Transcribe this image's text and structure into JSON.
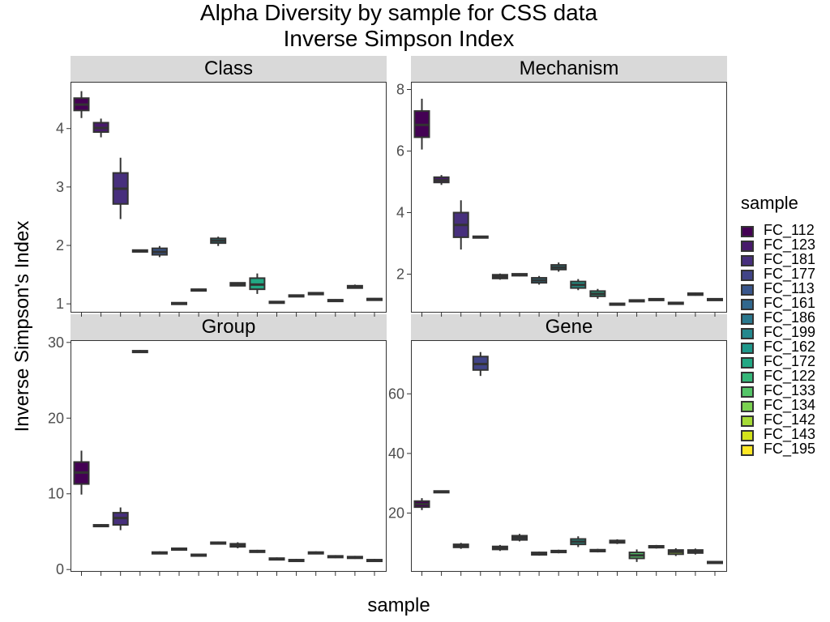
{
  "title_line1": "Alpha Diversity by sample for CSS data",
  "title_line2": "Inverse Simpson Index",
  "ylabel": "Inverse Simpson's Index",
  "xlabel": "sample",
  "legend": {
    "title": "sample",
    "items": [
      {
        "label": "FC_112",
        "color": "#440154"
      },
      {
        "label": "FC_123",
        "color": "#481a6c"
      },
      {
        "label": "FC_181",
        "color": "#472f7d"
      },
      {
        "label": "FC_177",
        "color": "#414487"
      },
      {
        "label": "FC_113",
        "color": "#39568c"
      },
      {
        "label": "FC_161",
        "color": "#31688e"
      },
      {
        "label": "FC_186",
        "color": "#2a788e"
      },
      {
        "label": "FC_199",
        "color": "#23888e"
      },
      {
        "label": "FC_162",
        "color": "#1f988b"
      },
      {
        "label": "FC_172",
        "color": "#22a884"
      },
      {
        "label": "FC_122",
        "color": "#35b779"
      },
      {
        "label": "FC_133",
        "color": "#54c568"
      },
      {
        "label": "FC_134",
        "color": "#7ad151"
      },
      {
        "label": "FC_142",
        "color": "#a5db36"
      },
      {
        "label": "FC_143",
        "color": "#d2e21b"
      },
      {
        "label": "FC_195",
        "color": "#fde725"
      }
    ]
  },
  "chart_data": {
    "type": "boxplot",
    "facets": [
      {
        "name": "Class",
        "ylim": [
          0.85,
          4.8
        ],
        "yticks": [
          1,
          2,
          3,
          4
        ],
        "boxes": [
          {
            "q1": 4.31,
            "median": 4.41,
            "q3": 4.52,
            "min": 4.18,
            "max": 4.64
          },
          {
            "q1": 3.94,
            "median": 4.01,
            "q3": 4.1,
            "min": 3.85,
            "max": 4.17
          },
          {
            "q1": 2.71,
            "median": 2.97,
            "q3": 3.24,
            "min": 2.45,
            "max": 3.5
          },
          {
            "q1": 1.89,
            "median": 1.9,
            "q3": 1.92,
            "min": 1.88,
            "max": 1.93
          },
          {
            "q1": 1.84,
            "median": 1.89,
            "q3": 1.95,
            "min": 1.8,
            "max": 1.99
          },
          {
            "q1": 1.0,
            "median": 1.01,
            "q3": 1.02,
            "min": 0.99,
            "max": 1.03
          },
          {
            "q1": 1.23,
            "median": 1.24,
            "q3": 1.25,
            "min": 1.22,
            "max": 1.26
          },
          {
            "q1": 2.04,
            "median": 2.08,
            "q3": 2.12,
            "min": 1.99,
            "max": 2.15
          },
          {
            "q1": 1.31,
            "median": 1.33,
            "q3": 1.36,
            "min": 1.3,
            "max": 1.37
          },
          {
            "q1": 1.25,
            "median": 1.33,
            "q3": 1.44,
            "min": 1.17,
            "max": 1.52
          },
          {
            "q1": 1.02,
            "median": 1.03,
            "q3": 1.04,
            "min": 1.01,
            "max": 1.05
          },
          {
            "q1": 1.13,
            "median": 1.14,
            "q3": 1.15,
            "min": 1.12,
            "max": 1.16
          },
          {
            "q1": 1.16,
            "median": 1.18,
            "q3": 1.19,
            "min": 1.15,
            "max": 1.2
          },
          {
            "q1": 1.05,
            "median": 1.06,
            "q3": 1.07,
            "min": 1.04,
            "max": 1.08
          },
          {
            "q1": 1.27,
            "median": 1.29,
            "q3": 1.31,
            "min": 1.26,
            "max": 1.33
          },
          {
            "q1": 1.07,
            "median": 1.08,
            "q3": 1.09,
            "min": 1.06,
            "max": 1.1
          }
        ]
      },
      {
        "name": "Mechanism",
        "ylim": [
          0.75,
          8.25
        ],
        "yticks": [
          2,
          4,
          6,
          8
        ],
        "boxes": [
          {
            "q1": 6.45,
            "median": 6.85,
            "q3": 7.3,
            "min": 6.05,
            "max": 7.7
          },
          {
            "q1": 4.98,
            "median": 5.05,
            "q3": 5.15,
            "min": 4.9,
            "max": 5.22
          },
          {
            "q1": 3.2,
            "median": 3.6,
            "q3": 4.0,
            "min": 2.8,
            "max": 4.4
          },
          {
            "q1": 3.19,
            "median": 3.21,
            "q3": 3.23,
            "min": 3.17,
            "max": 3.25
          },
          {
            "q1": 1.86,
            "median": 1.92,
            "q3": 1.98,
            "min": 1.82,
            "max": 2.02
          },
          {
            "q1": 1.95,
            "median": 1.98,
            "q3": 2.01,
            "min": 1.93,
            "max": 2.03
          },
          {
            "q1": 1.72,
            "median": 1.8,
            "q3": 1.88,
            "min": 1.66,
            "max": 1.94
          },
          {
            "q1": 2.15,
            "median": 2.22,
            "q3": 2.3,
            "min": 2.08,
            "max": 2.38
          },
          {
            "q1": 1.55,
            "median": 1.65,
            "q3": 1.76,
            "min": 1.48,
            "max": 1.84
          },
          {
            "q1": 1.28,
            "median": 1.36,
            "q3": 1.45,
            "min": 1.2,
            "max": 1.52
          },
          {
            "q1": 1.01,
            "median": 1.03,
            "q3": 1.05,
            "min": 1.0,
            "max": 1.06
          },
          {
            "q1": 1.12,
            "median": 1.14,
            "q3": 1.16,
            "min": 1.1,
            "max": 1.18
          },
          {
            "q1": 1.16,
            "median": 1.18,
            "q3": 1.2,
            "min": 1.14,
            "max": 1.22
          },
          {
            "q1": 1.04,
            "median": 1.06,
            "q3": 1.08,
            "min": 1.02,
            "max": 1.1
          },
          {
            "q1": 1.32,
            "median": 1.35,
            "q3": 1.38,
            "min": 1.3,
            "max": 1.4
          },
          {
            "q1": 1.16,
            "median": 1.18,
            "q3": 1.2,
            "min": 1.14,
            "max": 1.22
          }
        ]
      },
      {
        "name": "Group",
        "ylim": [
          -0.3,
          30.3
        ],
        "yticks": [
          0,
          10,
          20,
          30
        ],
        "boxes": [
          {
            "q1": 11.3,
            "median": 12.8,
            "q3": 14.2,
            "min": 9.9,
            "max": 15.7
          },
          {
            "q1": 5.7,
            "median": 5.8,
            "q3": 5.9,
            "min": 5.6,
            "max": 6.0
          },
          {
            "q1": 5.9,
            "median": 6.8,
            "q3": 7.5,
            "min": 5.2,
            "max": 8.2
          },
          {
            "q1": 28.7,
            "median": 28.8,
            "q3": 28.9,
            "min": 28.6,
            "max": 29.0
          },
          {
            "q1": 2.1,
            "median": 2.2,
            "q3": 2.3,
            "min": 2.0,
            "max": 2.4
          },
          {
            "q1": 2.6,
            "median": 2.7,
            "q3": 2.8,
            "min": 2.5,
            "max": 2.9
          },
          {
            "q1": 1.8,
            "median": 1.9,
            "q3": 2.0,
            "min": 1.7,
            "max": 2.1
          },
          {
            "q1": 3.4,
            "median": 3.5,
            "q3": 3.6,
            "min": 3.3,
            "max": 3.7
          },
          {
            "q1": 3.0,
            "median": 3.2,
            "q3": 3.4,
            "min": 2.8,
            "max": 3.6
          },
          {
            "q1": 2.3,
            "median": 2.4,
            "q3": 2.5,
            "min": 2.2,
            "max": 2.6
          },
          {
            "q1": 1.3,
            "median": 1.4,
            "q3": 1.5,
            "min": 1.2,
            "max": 1.6
          },
          {
            "q1": 1.1,
            "median": 1.2,
            "q3": 1.3,
            "min": 1.0,
            "max": 1.4
          },
          {
            "q1": 2.1,
            "median": 2.2,
            "q3": 2.3,
            "min": 2.0,
            "max": 2.4
          },
          {
            "q1": 1.6,
            "median": 1.7,
            "q3": 1.8,
            "min": 1.5,
            "max": 1.9
          },
          {
            "q1": 1.5,
            "median": 1.6,
            "q3": 1.7,
            "min": 1.4,
            "max": 1.8
          },
          {
            "q1": 1.1,
            "median": 1.2,
            "q3": 1.3,
            "min": 1.0,
            "max": 1.4
          }
        ]
      },
      {
        "name": "Gene",
        "ylim": [
          0.3,
          78.0
        ],
        "yticks": [
          20,
          40,
          60
        ],
        "boxes": [
          {
            "q1": 22.0,
            "median": 23.0,
            "q3": 24.0,
            "min": 21.0,
            "max": 25.0
          },
          {
            "q1": 27.0,
            "median": 27.2,
            "q3": 27.4,
            "min": 26.9,
            "max": 27.6
          },
          {
            "q1": 8.5,
            "median": 9.0,
            "q3": 9.5,
            "min": 8.0,
            "max": 10.0
          },
          {
            "q1": 68.0,
            "median": 70.0,
            "q3": 72.5,
            "min": 66.0,
            "max": 74.0
          },
          {
            "q1": 7.8,
            "median": 8.3,
            "q3": 8.8,
            "min": 7.3,
            "max": 9.3
          },
          {
            "q1": 11.0,
            "median": 11.7,
            "q3": 12.4,
            "min": 10.5,
            "max": 13.0
          },
          {
            "q1": 6.0,
            "median": 6.4,
            "q3": 6.8,
            "min": 5.7,
            "max": 7.1
          },
          {
            "q1": 6.8,
            "median": 7.1,
            "q3": 7.4,
            "min": 6.5,
            "max": 7.7
          },
          {
            "q1": 9.5,
            "median": 10.4,
            "q3": 11.3,
            "min": 8.6,
            "max": 12.2
          },
          {
            "q1": 7.1,
            "median": 7.4,
            "q3": 7.7,
            "min": 6.8,
            "max": 8.0
          },
          {
            "q1": 10.0,
            "median": 10.4,
            "q3": 10.8,
            "min": 9.6,
            "max": 11.2
          },
          {
            "q1": 4.8,
            "median": 5.8,
            "q3": 6.8,
            "min": 3.6,
            "max": 7.8
          },
          {
            "q1": 8.4,
            "median": 8.7,
            "q3": 9.0,
            "min": 8.1,
            "max": 9.3
          },
          {
            "q1": 6.2,
            "median": 7.0,
            "q3": 7.6,
            "min": 5.6,
            "max": 8.2
          },
          {
            "q1": 6.6,
            "median": 7.1,
            "q3": 7.6,
            "min": 6.1,
            "max": 8.1
          },
          {
            "q1": 3.3,
            "median": 3.5,
            "q3": 3.7,
            "min": 3.1,
            "max": 3.9
          }
        ]
      }
    ]
  }
}
